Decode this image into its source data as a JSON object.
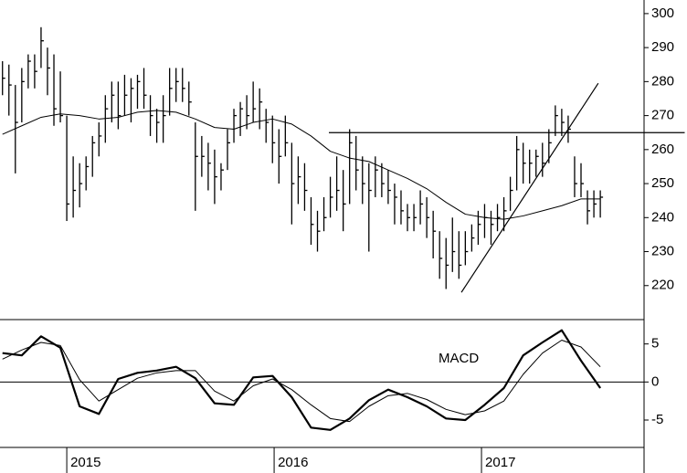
{
  "chart_data": [
    {
      "type": "hlc",
      "x": [
        2014.69,
        2014.721,
        2014.752,
        2014.783,
        2014.814,
        2014.845,
        2014.876,
        2014.907,
        2014.938,
        2014.969,
        2015.0,
        2015.031,
        2015.062,
        2015.093,
        2015.124,
        2015.155,
        2015.186,
        2015.217,
        2015.248,
        2015.279,
        2015.31,
        2015.341,
        2015.372,
        2015.403,
        2015.434,
        2015.465,
        2015.496,
        2015.527,
        2015.558,
        2015.589,
        2015.62,
        2015.651,
        2015.682,
        2015.713,
        2015.744,
        2015.775,
        2015.806,
        2015.837,
        2015.868,
        2015.899,
        2015.93,
        2015.961,
        2015.992,
        2016.023,
        2016.054,
        2016.085,
        2016.116,
        2016.147,
        2016.178,
        2016.209,
        2016.24,
        2016.271,
        2016.302,
        2016.333,
        2016.364,
        2016.395,
        2016.426,
        2016.457,
        2016.488,
        2016.519,
        2016.55,
        2016.581,
        2016.612,
        2016.643,
        2016.674,
        2016.705,
        2016.736,
        2016.767,
        2016.798,
        2016.829,
        2016.86,
        2016.891,
        2016.922,
        2016.953,
        2016.984,
        2017.015,
        2017.046,
        2017.077,
        2017.108,
        2017.139,
        2017.17,
        2017.201,
        2017.232,
        2017.263,
        2017.294,
        2017.325,
        2017.356,
        2017.387,
        2017.418,
        2017.449,
        2017.48,
        2017.511,
        2017.542,
        2017.573
      ],
      "high": [
        286,
        285,
        279,
        284,
        288,
        288,
        296,
        290,
        288,
        283,
        270,
        258,
        256,
        258,
        264,
        268,
        276,
        280,
        280,
        282,
        281,
        282,
        284,
        276,
        272,
        276,
        284,
        284,
        284,
        280,
        268,
        264,
        262,
        260,
        256,
        266,
        272,
        274,
        276,
        280,
        278,
        272,
        270,
        266,
        270,
        262,
        258,
        256,
        246,
        242,
        246,
        252,
        258,
        254,
        266,
        264,
        258,
        256,
        258,
        256,
        254,
        250,
        248,
        244,
        244,
        248,
        246,
        242,
        236,
        234,
        240,
        236,
        236,
        238,
        242,
        244,
        242,
        244,
        246,
        252,
        264,
        262,
        260,
        260,
        262,
        266,
        273,
        272,
        270,
        258,
        256,
        248,
        248,
        248
      ],
      "low": [
        276,
        270,
        253,
        268,
        278,
        278,
        284,
        276,
        267,
        268,
        239,
        240,
        243,
        248,
        252,
        258,
        262,
        268,
        266,
        270,
        268,
        272,
        272,
        264,
        262,
        262,
        270,
        274,
        274,
        270,
        242,
        252,
        248,
        244,
        248,
        254,
        262,
        264,
        266,
        268,
        266,
        262,
        256,
        250,
        258,
        238,
        244,
        242,
        232,
        230,
        236,
        240,
        242,
        236,
        244,
        248,
        244,
        230,
        246,
        246,
        244,
        238,
        238,
        236,
        236,
        238,
        234,
        228,
        222,
        219,
        224,
        222,
        226,
        230,
        232,
        234,
        232,
        236,
        236,
        242,
        248,
        250,
        250,
        252,
        252,
        256,
        264,
        264,
        262,
        246,
        246,
        238,
        240,
        240
      ],
      "close": [
        281,
        279,
        268,
        280,
        286,
        283,
        292,
        284,
        272,
        270,
        244,
        248,
        250,
        255,
        262,
        264,
        272,
        276,
        270,
        276,
        278,
        280,
        276,
        270,
        268,
        270,
        278,
        280,
        278,
        274,
        258,
        258,
        256,
        252,
        254,
        262,
        270,
        272,
        270,
        272,
        274,
        268,
        262,
        258,
        262,
        250,
        252,
        248,
        238,
        236,
        240,
        246,
        248,
        244,
        262,
        254,
        250,
        248,
        254,
        250,
        248,
        246,
        242,
        240,
        240,
        244,
        240,
        236,
        228,
        226,
        230,
        226,
        230,
        234,
        238,
        240,
        238,
        240,
        242,
        248,
        260,
        256,
        256,
        258,
        256,
        262,
        270,
        268,
        266,
        250,
        250,
        242,
        244,
        246
      ],
      "color": "#000000",
      "series": [
        {
          "color": "#000000",
          "x": [
            2014.69,
            2014.783,
            2014.876,
            2014.969,
            2015.062,
            2015.155,
            2015.248,
            2015.341,
            2015.434,
            2015.527,
            2015.62,
            2015.713,
            2015.806,
            2015.899,
            2015.992,
            2016.085,
            2016.178,
            2016.271,
            2016.364,
            2016.457,
            2016.55,
            2016.643,
            2016.736,
            2016.829,
            2016.922,
            2017.015,
            2017.108,
            2017.201,
            2017.294,
            2017.387,
            2017.48,
            2017.573
          ],
          "values": [
            264.5,
            267,
            269.5,
            270.5,
            270,
            269,
            269.5,
            271,
            271.5,
            271,
            269,
            266.5,
            266,
            268,
            269,
            267.5,
            264,
            259.5,
            257.5,
            256.5,
            254,
            251.5,
            248.5,
            244.5,
            241,
            240,
            239.5,
            240.5,
            242,
            243.5,
            245.5,
            245.5
          ]
        }
      ],
      "lines": [
        {
          "x": [
            2016.264,
            2017.98
          ],
          "y": [
            265,
            265
          ]
        },
        {
          "x": [
            2016.903,
            2017.563
          ],
          "y": [
            218,
            279.5
          ]
        }
      ],
      "xlim": [
        2014.678,
        2017.784
      ],
      "ylim": [
        210,
        304
      ],
      "yticks": [
        220,
        230,
        240,
        250,
        260,
        270,
        280,
        290,
        300
      ]
    },
    {
      "type": "line",
      "label": "MACD",
      "series": [
        {
          "color": "#000000",
          "width": 2.2,
          "x": [
            2014.69,
            2014.783,
            2014.876,
            2014.969,
            2015.062,
            2015.155,
            2015.248,
            2015.341,
            2015.434,
            2015.527,
            2015.62,
            2015.713,
            2015.806,
            2015.899,
            2015.992,
            2016.085,
            2016.178,
            2016.271,
            2016.364,
            2016.457,
            2016.55,
            2016.643,
            2016.736,
            2016.829,
            2016.922,
            2017.015,
            2017.108,
            2017.201,
            2017.294,
            2017.387,
            2017.48,
            2017.573
          ],
          "values": [
            3.8,
            3.5,
            6.0,
            4.5,
            -3.2,
            -4.2,
            0.4,
            1.2,
            1.5,
            2.0,
            0.5,
            -2.8,
            -3.0,
            0.6,
            0.8,
            -2.0,
            -6.0,
            -6.3,
            -4.8,
            -2.4,
            -1.0,
            -2.0,
            -3.2,
            -4.8,
            -5.0,
            -3.0,
            -0.8,
            3.5,
            5.2,
            6.8,
            2.8,
            -0.8
          ]
        },
        {
          "color": "#000000",
          "width": 1,
          "x": [
            2014.69,
            2014.783,
            2014.876,
            2014.969,
            2015.062,
            2015.155,
            2015.248,
            2015.341,
            2015.434,
            2015.527,
            2015.62,
            2015.713,
            2015.806,
            2015.899,
            2015.992,
            2016.085,
            2016.178,
            2016.271,
            2016.364,
            2016.457,
            2016.55,
            2016.643,
            2016.736,
            2016.829,
            2016.922,
            2017.015,
            2017.108,
            2017.201,
            2017.294,
            2017.387,
            2017.48,
            2017.573
          ],
          "values": [
            3.0,
            4.2,
            5.2,
            4.8,
            0.3,
            -2.5,
            -1.0,
            0.5,
            1.2,
            1.5,
            1.5,
            -1.2,
            -2.5,
            -0.5,
            0.4,
            -1.0,
            -3.0,
            -4.8,
            -5.2,
            -3.2,
            -1.8,
            -1.5,
            -2.3,
            -3.6,
            -4.3,
            -3.8,
            -2.5,
            1.0,
            3.8,
            5.5,
            4.6,
            2.0
          ]
        }
      ],
      "xlim": [
        2014.678,
        2017.784
      ],
      "xticks": [
        2015,
        2016,
        2017
      ],
      "ylim": [
        -8.6,
        8.2
      ],
      "yticks": [
        -5,
        0,
        5
      ]
    }
  ]
}
